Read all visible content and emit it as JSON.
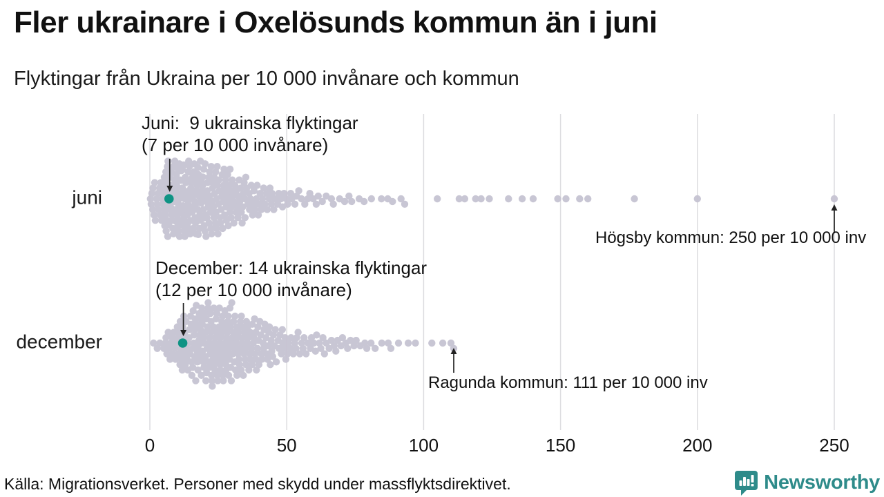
{
  "title": "Fler ukrainare i Oxelösunds kommun än i juni",
  "subtitle": "Flyktingar från Ukraina per 10 000 invånare och kommun",
  "source": "Källa: Migrationsverket. Personer med skydd under massflyktsdirektivet.",
  "logo": {
    "text": "Newsworthy",
    "color": "#2e8b8a"
  },
  "colors": {
    "dot": "#c6c3d2",
    "highlight": "#0f9384",
    "grid": "#dcdcdf",
    "text": "#1a1a1a",
    "arrow": "#222222"
  },
  "chart_data": {
    "type": "scatter",
    "variant": "beeswarm",
    "title": "Fler ukrainare i Oxelösunds kommun än i juni",
    "subtitle": "Flyktingar från Ukraina per 10 000 invånare och kommun",
    "xlabel": "",
    "unit": "flyktingar per 10 000 invånare",
    "x_ticks": [
      0,
      50,
      100,
      150,
      200,
      250
    ],
    "xlim": [
      0,
      260
    ],
    "grid": "vertical",
    "rows": [
      {
        "label": "juni",
        "highlight": {
          "value": 7,
          "refugees": 9,
          "lines": [
            "Juni:  9 ukrainska flyktingar",
            "(7 per 10 000 invånare)"
          ]
        },
        "outlier_label": {
          "value": 250,
          "text": "Högsby kommun: 250 per 10 000 inv"
        },
        "bins": [
          [
            0,
            5,
            18
          ],
          [
            5,
            10,
            38
          ],
          [
            10,
            15,
            42
          ],
          [
            15,
            20,
            38
          ],
          [
            20,
            25,
            32
          ],
          [
            25,
            30,
            27
          ],
          [
            30,
            35,
            20
          ],
          [
            35,
            40,
            15
          ],
          [
            40,
            45,
            11
          ],
          [
            45,
            50,
            8
          ],
          [
            50,
            55,
            6
          ],
          [
            55,
            60,
            5
          ],
          [
            60,
            65,
            4
          ],
          [
            65,
            70,
            3
          ],
          [
            70,
            75,
            3
          ],
          [
            75,
            80,
            2
          ],
          [
            80,
            85,
            2
          ],
          [
            85,
            90,
            2
          ],
          [
            90,
            95,
            2
          ]
        ],
        "outliers": [
          105,
          113,
          115,
          119,
          121,
          124,
          131,
          136,
          140,
          149,
          152,
          157,
          160,
          177,
          200,
          250
        ]
      },
      {
        "label": "december",
        "highlight": {
          "value": 12,
          "refugees": 14,
          "lines": [
            "December: 14 ukrainska flyktingar",
            "(12 per 10 000 invånare)"
          ]
        },
        "outlier_label": {
          "value": 111,
          "text": "Ragunda kommun: 111 per 10 000 inv"
        },
        "bins": [
          [
            0,
            5,
            3
          ],
          [
            5,
            10,
            14
          ],
          [
            10,
            15,
            24
          ],
          [
            15,
            20,
            32
          ],
          [
            20,
            25,
            36
          ],
          [
            25,
            30,
            34
          ],
          [
            30,
            35,
            28
          ],
          [
            35,
            40,
            23
          ],
          [
            40,
            45,
            18
          ],
          [
            45,
            50,
            13
          ],
          [
            50,
            55,
            10
          ],
          [
            55,
            60,
            8
          ],
          [
            60,
            65,
            7
          ],
          [
            65,
            70,
            6
          ],
          [
            70,
            75,
            5
          ],
          [
            75,
            80,
            4
          ],
          [
            80,
            85,
            3
          ],
          [
            85,
            90,
            2
          ],
          [
            90,
            95,
            2
          ]
        ],
        "outliers": [
          97,
          103,
          107,
          110,
          111
        ]
      }
    ]
  }
}
